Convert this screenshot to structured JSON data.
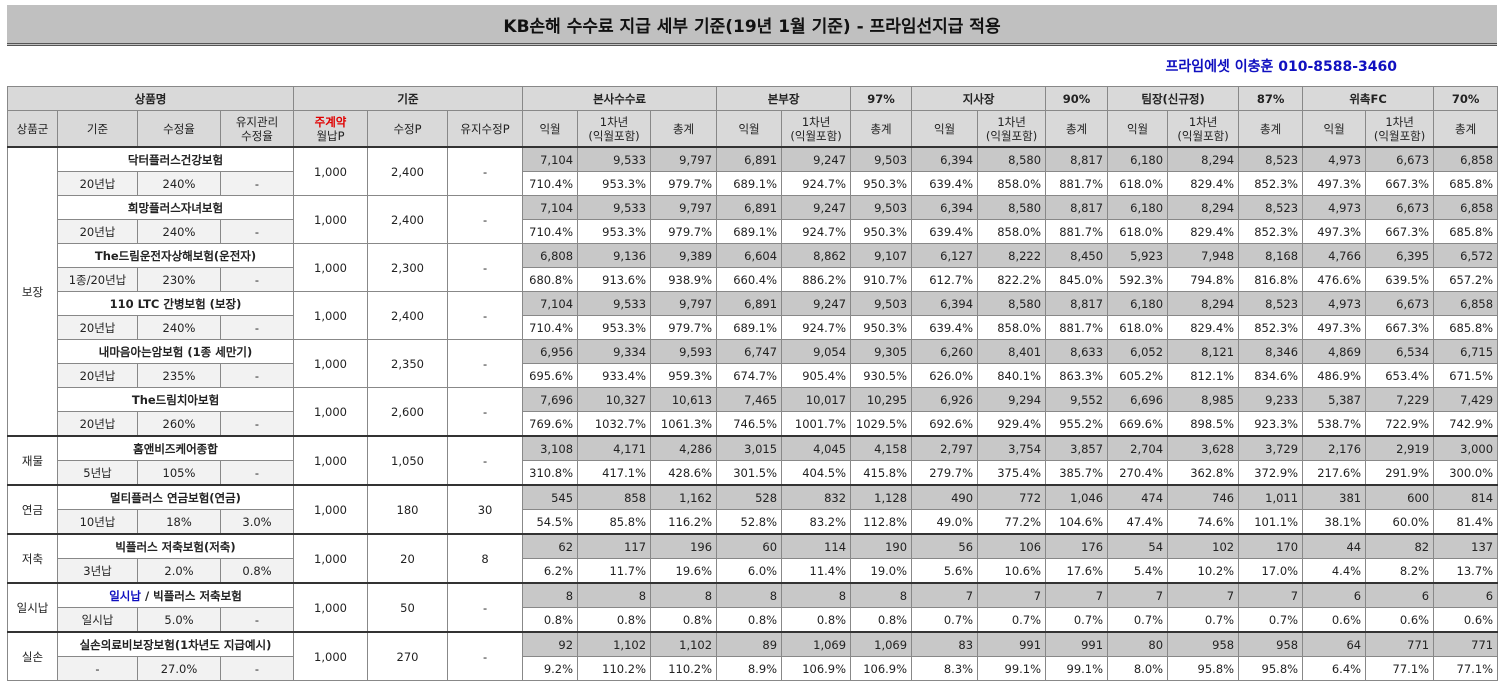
{
  "header": {
    "title": "KB손해 수수료 지급 세부 기준(19년 1월 기준) - 프라임선지급 적용",
    "contact": "프라임에셋 이충훈 010-8588-3460"
  },
  "table": {
    "head": {
      "product": "상품명",
      "basis": "기준",
      "hq": "본사수수료",
      "orgs": [
        {
          "name": "본부장",
          "rate": "97%"
        },
        {
          "name": "지사장",
          "rate": "90%"
        },
        {
          "name": "팀장(신규정)",
          "rate": "87%"
        },
        {
          "name": "위촉FC",
          "rate": "70%"
        }
      ],
      "cols": {
        "group": "상품군",
        "term": "기준",
        "rate": "수정율",
        "maint": "유지관리\n수정율",
        "main_contract": "주계약",
        "monthly": "월납P",
        "mod": "수정P",
        "maint_mod": "유지수정P"
      },
      "sub": [
        "익월",
        "1차년\n(익월포함)",
        "총계"
      ]
    },
    "groups": [
      {
        "label": "보장",
        "products": [
          {
            "name": "닥터플러스건강보험",
            "term": "20년납",
            "rate": "240%",
            "maint_rate": "-",
            "monthly_p": "1,000",
            "mod_p": "2,400",
            "maint_mod_p": "-",
            "amounts": [
              "7,104",
              "9,533",
              "9,797",
              "6,891",
              "9,247",
              "9,503",
              "6,394",
              "8,580",
              "8,817",
              "6,180",
              "8,294",
              "8,523",
              "4,973",
              "6,673",
              "6,858"
            ],
            "percents": [
              "710.4%",
              "953.3%",
              "979.7%",
              "689.1%",
              "924.7%",
              "950.3%",
              "639.4%",
              "858.0%",
              "881.7%",
              "618.0%",
              "829.4%",
              "852.3%",
              "497.3%",
              "667.3%",
              "685.8%"
            ]
          },
          {
            "name": "희망플러스자녀보험",
            "term": "20년납",
            "rate": "240%",
            "maint_rate": "-",
            "monthly_p": "1,000",
            "mod_p": "2,400",
            "maint_mod_p": "-",
            "amounts": [
              "7,104",
              "9,533",
              "9,797",
              "6,891",
              "9,247",
              "9,503",
              "6,394",
              "8,580",
              "8,817",
              "6,180",
              "8,294",
              "8,523",
              "4,973",
              "6,673",
              "6,858"
            ],
            "percents": [
              "710.4%",
              "953.3%",
              "979.7%",
              "689.1%",
              "924.7%",
              "950.3%",
              "639.4%",
              "858.0%",
              "881.7%",
              "618.0%",
              "829.4%",
              "852.3%",
              "497.3%",
              "667.3%",
              "685.8%"
            ]
          },
          {
            "name": "The드림운전자상해보험(운전자)",
            "term": "1종/20년납",
            "rate": "230%",
            "maint_rate": "-",
            "monthly_p": "1,000",
            "mod_p": "2,300",
            "maint_mod_p": "-",
            "amounts": [
              "6,808",
              "9,136",
              "9,389",
              "6,604",
              "8,862",
              "9,107",
              "6,127",
              "8,222",
              "8,450",
              "5,923",
              "7,948",
              "8,168",
              "4,766",
              "6,395",
              "6,572"
            ],
            "percents": [
              "680.8%",
              "913.6%",
              "938.9%",
              "660.4%",
              "886.2%",
              "910.7%",
              "612.7%",
              "822.2%",
              "845.0%",
              "592.3%",
              "794.8%",
              "816.8%",
              "476.6%",
              "639.5%",
              "657.2%"
            ]
          },
          {
            "name": "110 LTC 간병보험 (보장)",
            "term": "20년납",
            "rate": "240%",
            "maint_rate": "-",
            "monthly_p": "1,000",
            "mod_p": "2,400",
            "maint_mod_p": "-",
            "amounts": [
              "7,104",
              "9,533",
              "9,797",
              "6,891",
              "9,247",
              "9,503",
              "6,394",
              "8,580",
              "8,817",
              "6,180",
              "8,294",
              "8,523",
              "4,973",
              "6,673",
              "6,858"
            ],
            "percents": [
              "710.4%",
              "953.3%",
              "979.7%",
              "689.1%",
              "924.7%",
              "950.3%",
              "639.4%",
              "858.0%",
              "881.7%",
              "618.0%",
              "829.4%",
              "852.3%",
              "497.3%",
              "667.3%",
              "685.8%"
            ]
          },
          {
            "name": "내마음아는암보험 (1종 세만기)",
            "term": "20년납",
            "rate": "235%",
            "maint_rate": "-",
            "monthly_p": "1,000",
            "mod_p": "2,350",
            "maint_mod_p": "-",
            "amounts": [
              "6,956",
              "9,334",
              "9,593",
              "6,747",
              "9,054",
              "9,305",
              "6,260",
              "8,401",
              "8,633",
              "6,052",
              "8,121",
              "8,346",
              "4,869",
              "6,534",
              "6,715"
            ],
            "percents": [
              "695.6%",
              "933.4%",
              "959.3%",
              "674.7%",
              "905.4%",
              "930.5%",
              "626.0%",
              "840.1%",
              "863.3%",
              "605.2%",
              "812.1%",
              "834.6%",
              "486.9%",
              "653.4%",
              "671.5%"
            ]
          },
          {
            "name": "The드림치아보험",
            "term": "20년납",
            "rate": "260%",
            "maint_rate": "-",
            "monthly_p": "1,000",
            "mod_p": "2,600",
            "maint_mod_p": "-",
            "amounts": [
              "7,696",
              "10,327",
              "10,613",
              "7,465",
              "10,017",
              "10,295",
              "6,926",
              "9,294",
              "9,552",
              "6,696",
              "8,985",
              "9,233",
              "5,387",
              "7,229",
              "7,429"
            ],
            "percents": [
              "769.6%",
              "1032.7%",
              "1061.3%",
              "746.5%",
              "1001.7%",
              "1029.5%",
              "692.6%",
              "929.4%",
              "955.2%",
              "669.6%",
              "898.5%",
              "923.3%",
              "538.7%",
              "722.9%",
              "742.9%"
            ]
          }
        ]
      },
      {
        "label": "재물",
        "products": [
          {
            "name": "홈앤비즈케어종합",
            "term": "5년납",
            "rate": "105%",
            "maint_rate": "-",
            "monthly_p": "1,000",
            "mod_p": "1,050",
            "maint_mod_p": "-",
            "amounts": [
              "3,108",
              "4,171",
              "4,286",
              "3,015",
              "4,045",
              "4,158",
              "2,797",
              "3,754",
              "3,857",
              "2,704",
              "3,628",
              "3,729",
              "2,176",
              "2,919",
              "3,000"
            ],
            "percents": [
              "310.8%",
              "417.1%",
              "428.6%",
              "301.5%",
              "404.5%",
              "415.8%",
              "279.7%",
              "375.4%",
              "385.7%",
              "270.4%",
              "362.8%",
              "372.9%",
              "217.6%",
              "291.9%",
              "300.0%"
            ]
          }
        ]
      },
      {
        "label": "연금",
        "products": [
          {
            "name": "멀티플러스 연금보험(연금)",
            "term": "10년납",
            "rate": "18%",
            "maint_rate": "3.0%",
            "monthly_p": "1,000",
            "mod_p": "180",
            "maint_mod_p": "30",
            "amounts": [
              "545",
              "858",
              "1,162",
              "528",
              "832",
              "1,128",
              "490",
              "772",
              "1,046",
              "474",
              "746",
              "1,011",
              "381",
              "600",
              "814"
            ],
            "percents": [
              "54.5%",
              "85.8%",
              "116.2%",
              "52.8%",
              "83.2%",
              "112.8%",
              "49.0%",
              "77.2%",
              "104.6%",
              "47.4%",
              "74.6%",
              "101.1%",
              "38.1%",
              "60.0%",
              "81.4%"
            ]
          }
        ]
      },
      {
        "label": "저축",
        "products": [
          {
            "name": "빅플러스 저축보험(저축)",
            "term": "3년납",
            "rate": "2.0%",
            "maint_rate": "0.8%",
            "monthly_p": "1,000",
            "mod_p": "20",
            "maint_mod_p": "8",
            "amounts": [
              "62",
              "117",
              "196",
              "60",
              "114",
              "190",
              "56",
              "106",
              "176",
              "54",
              "102",
              "170",
              "44",
              "82",
              "137"
            ],
            "percents": [
              "6.2%",
              "11.7%",
              "19.6%",
              "6.0%",
              "11.4%",
              "19.0%",
              "5.6%",
              "10.6%",
              "17.6%",
              "5.4%",
              "10.2%",
              "17.0%",
              "4.4%",
              "8.2%",
              "13.7%"
            ]
          }
        ]
      },
      {
        "label": "일시납",
        "products": [
          {
            "name_prefix": "일시납",
            "name": "/ 빅플러스 저축보험",
            "term": "일시납",
            "rate": "5.0%",
            "maint_rate": "-",
            "monthly_p": "1,000",
            "mod_p": "50",
            "maint_mod_p": "-",
            "amounts": [
              "8",
              "8",
              "8",
              "8",
              "8",
              "8",
              "7",
              "7",
              "7",
              "7",
              "7",
              "7",
              "6",
              "6",
              "6"
            ],
            "percents": [
              "0.8%",
              "0.8%",
              "0.8%",
              "0.8%",
              "0.8%",
              "0.8%",
              "0.7%",
              "0.7%",
              "0.7%",
              "0.7%",
              "0.7%",
              "0.7%",
              "0.6%",
              "0.6%",
              "0.6%"
            ]
          }
        ]
      },
      {
        "label": "실손",
        "products": [
          {
            "name": "실손의료비보장보험(1차년도 지급예시)",
            "term": "-",
            "rate": "27.0%",
            "maint_rate": "-",
            "monthly_p": "1,000",
            "mod_p": "270",
            "maint_mod_p": "-",
            "amounts": [
              "92",
              "1,102",
              "1,102",
              "89",
              "1,069",
              "1,069",
              "83",
              "991",
              "991",
              "80",
              "958",
              "958",
              "64",
              "771",
              "771"
            ],
            "percents": [
              "9.2%",
              "110.2%",
              "110.2%",
              "8.9%",
              "106.9%",
              "106.9%",
              "8.3%",
              "99.1%",
              "99.1%",
              "8.0%",
              "95.8%",
              "95.8%",
              "6.4%",
              "77.1%",
              "77.1%"
            ]
          }
        ]
      }
    ]
  }
}
